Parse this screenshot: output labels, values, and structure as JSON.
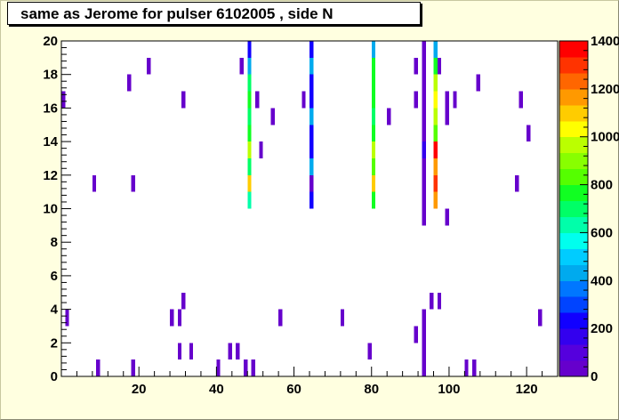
{
  "chart_data": {
    "type": "heatmap",
    "title": "same as Jerome for pulser 6102005 , side N",
    "xlim": [
      0,
      128
    ],
    "ylim": [
      0,
      20
    ],
    "zlim": [
      0,
      1400
    ],
    "x_ticks": [
      20,
      40,
      60,
      80,
      100,
      120
    ],
    "y_ticks": [
      0,
      2,
      4,
      6,
      8,
      10,
      12,
      14,
      16,
      18,
      20
    ],
    "z_ticks": [
      "0",
      "200",
      "400",
      "600",
      "800",
      "1000",
      "1200",
      "1400"
    ],
    "palette": [
      "#6600cc",
      "#5500dd",
      "#3300ee",
      "#1100ff",
      "#0044ff",
      "#0077ff",
      "#00aaee",
      "#00ccff",
      "#00ffee",
      "#00ffaa",
      "#00ff66",
      "#11ff22",
      "#55ff00",
      "#88ff00",
      "#bbff00",
      "#ffff00",
      "#ffcc00",
      "#ff9900",
      "#ff6600",
      "#ff3300",
      "#ff0000"
    ],
    "cells": [
      [
        9,
        0,
        30
      ],
      [
        18,
        0,
        30
      ],
      [
        40,
        0,
        30
      ],
      [
        47,
        0,
        30
      ],
      [
        49,
        0,
        30
      ],
      [
        93,
        0,
        30
      ],
      [
        104,
        0,
        30
      ],
      [
        106,
        0,
        30
      ],
      [
        30,
        1,
        30
      ],
      [
        33,
        1,
        30
      ],
      [
        43,
        1,
        30
      ],
      [
        45,
        1,
        30
      ],
      [
        79,
        1,
        30
      ],
      [
        93,
        1,
        30
      ],
      [
        91,
        2,
        30
      ],
      [
        93,
        2,
        30
      ],
      [
        1,
        3,
        30
      ],
      [
        28,
        3,
        30
      ],
      [
        30,
        3,
        30
      ],
      [
        56,
        3,
        30
      ],
      [
        72,
        3,
        30
      ],
      [
        93,
        3,
        30
      ],
      [
        123,
        3,
        30
      ],
      [
        31,
        4,
        30
      ],
      [
        95,
        4,
        30
      ],
      [
        97,
        4,
        30
      ],
      [
        93,
        9,
        30
      ],
      [
        99,
        9,
        30
      ],
      [
        48,
        10,
        650
      ],
      [
        64,
        10,
        220
      ],
      [
        80,
        10,
        750
      ],
      [
        93,
        10,
        30
      ],
      [
        96,
        10,
        1150
      ],
      [
        8,
        11,
        30
      ],
      [
        18,
        11,
        30
      ],
      [
        48,
        11,
        1100
      ],
      [
        64,
        11,
        30
      ],
      [
        80,
        11,
        1100
      ],
      [
        93,
        11,
        30
      ],
      [
        96,
        11,
        1300
      ],
      [
        117,
        11,
        30
      ],
      [
        48,
        12,
        700
      ],
      [
        64,
        12,
        450
      ],
      [
        80,
        12,
        850
      ],
      [
        93,
        12,
        40
      ],
      [
        96,
        12,
        1150
      ],
      [
        48,
        13,
        950
      ],
      [
        51,
        13,
        30
      ],
      [
        64,
        13,
        220
      ],
      [
        80,
        13,
        950
      ],
      [
        93,
        13,
        150
      ],
      [
        96,
        13,
        1350
      ],
      [
        48,
        14,
        750
      ],
      [
        64,
        14,
        220
      ],
      [
        80,
        14,
        750
      ],
      [
        93,
        14,
        30
      ],
      [
        96,
        14,
        850
      ],
      [
        120,
        14,
        30
      ],
      [
        48,
        15,
        700
      ],
      [
        54,
        15,
        30
      ],
      [
        64,
        15,
        450
      ],
      [
        80,
        15,
        700
      ],
      [
        84,
        15,
        30
      ],
      [
        93,
        15,
        30
      ],
      [
        96,
        15,
        950
      ],
      [
        99,
        15,
        30
      ],
      [
        0,
        16,
        30
      ],
      [
        31,
        16,
        30
      ],
      [
        48,
        16,
        750
      ],
      [
        50,
        16,
        30
      ],
      [
        62,
        16,
        30
      ],
      [
        64,
        16,
        220
      ],
      [
        80,
        16,
        750
      ],
      [
        91,
        16,
        30
      ],
      [
        93,
        16,
        30
      ],
      [
        96,
        16,
        1050
      ],
      [
        99,
        16,
        30
      ],
      [
        101,
        16,
        30
      ],
      [
        118,
        16,
        30
      ],
      [
        17,
        17,
        30
      ],
      [
        48,
        17,
        700
      ],
      [
        64,
        17,
        220
      ],
      [
        80,
        17,
        750
      ],
      [
        93,
        17,
        30
      ],
      [
        96,
        17,
        950
      ],
      [
        107,
        17,
        30
      ],
      [
        22,
        18,
        30
      ],
      [
        46,
        18,
        30
      ],
      [
        48,
        18,
        420
      ],
      [
        64,
        18,
        420
      ],
      [
        80,
        18,
        750
      ],
      [
        91,
        18,
        30
      ],
      [
        93,
        18,
        30
      ],
      [
        96,
        18,
        750
      ],
      [
        97,
        18,
        30
      ],
      [
        48,
        19,
        220
      ],
      [
        64,
        19,
        220
      ],
      [
        80,
        19,
        420
      ],
      [
        93,
        19,
        30
      ],
      [
        96,
        19,
        420
      ]
    ]
  }
}
